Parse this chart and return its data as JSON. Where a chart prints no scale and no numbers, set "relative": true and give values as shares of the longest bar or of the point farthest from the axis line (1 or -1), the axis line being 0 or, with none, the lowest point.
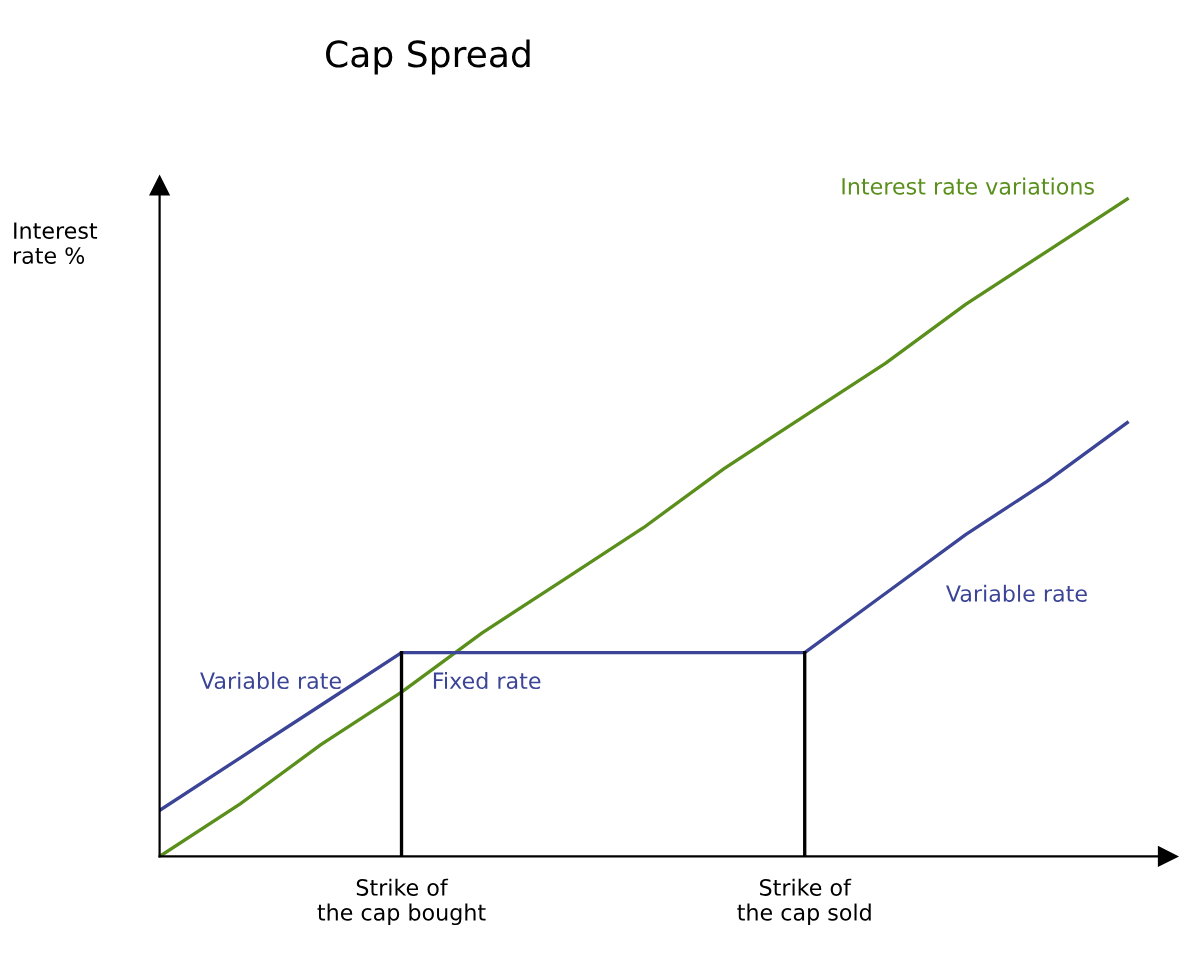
{
  "chart_data": {
    "type": "line",
    "title": "Cap Spread",
    "ylabel": "Interest\nrate %",
    "relative": true,
    "categories": [
      null,
      null,
      null,
      "Strike of\nthe cap bought",
      null,
      null,
      null,
      null,
      "Strike of\nthe cap sold",
      null,
      null,
      null,
      null
    ],
    "series": [
      {
        "name": "Interest rate variations",
        "color": "#5a8f1c",
        "values": [
          0,
          0.08,
          0.17,
          0.25,
          0.34,
          0.42,
          0.5,
          0.59,
          0.67,
          0.75,
          0.84,
          0.92,
          1.0
        ]
      },
      {
        "color": "#3b4496",
        "values": [
          0.07,
          0.15,
          0.23,
          0.31,
          0.31,
          0.31,
          0.31,
          0.31,
          0.31,
          0.4,
          0.49,
          0.57,
          0.66
        ]
      }
    ],
    "annotations": [
      "Variable rate",
      "Fixed rate",
      "Variable rate"
    ],
    "ref_lines": [
      {
        "axis": "x",
        "value": "Strike of\nthe cap bought",
        "color": "#000000"
      },
      {
        "axis": "x",
        "value": "Strike of\nthe cap sold",
        "color": "#000000"
      }
    ],
    "grid": false
  }
}
